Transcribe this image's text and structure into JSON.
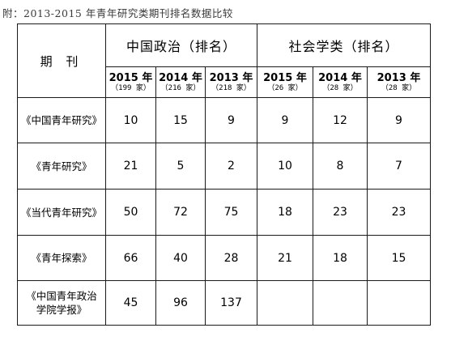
{
  "caption": "附：2013-2015 年青年研究类期刊排名数据比较",
  "table": {
    "period_header": "期 刊",
    "groups": [
      "中国政治（排名）",
      "社会学类（排名）"
    ],
    "columns": [
      {
        "year": "2015 年",
        "count": "（199 家）"
      },
      {
        "year": "2014 年",
        "count": "（216 家）"
      },
      {
        "year": "2013 年",
        "count": "（218 家）"
      },
      {
        "year": "2015 年",
        "count": "（26 家）"
      },
      {
        "year": "2014 年",
        "count": "（28 家）"
      },
      {
        "year": "2013 年",
        "count": "（28 家）"
      }
    ],
    "rows": [
      {
        "name": "《中国青年研究》",
        "values": [
          "10",
          "15",
          "9",
          "9",
          "12",
          "9"
        ]
      },
      {
        "name": "《青年研究》",
        "values": [
          "21",
          "5",
          "2",
          "10",
          "8",
          "7"
        ]
      },
      {
        "name": "《当代青年研究》",
        "values": [
          "50",
          "72",
          "75",
          "18",
          "23",
          "23"
        ]
      },
      {
        "name": "《青年探索》",
        "values": [
          "66",
          "40",
          "28",
          "21",
          "18",
          "15"
        ]
      },
      {
        "name": "《中国青年政治学院学报》",
        "values": [
          "45",
          "96",
          "137",
          "",
          "",
          ""
        ]
      }
    ]
  }
}
